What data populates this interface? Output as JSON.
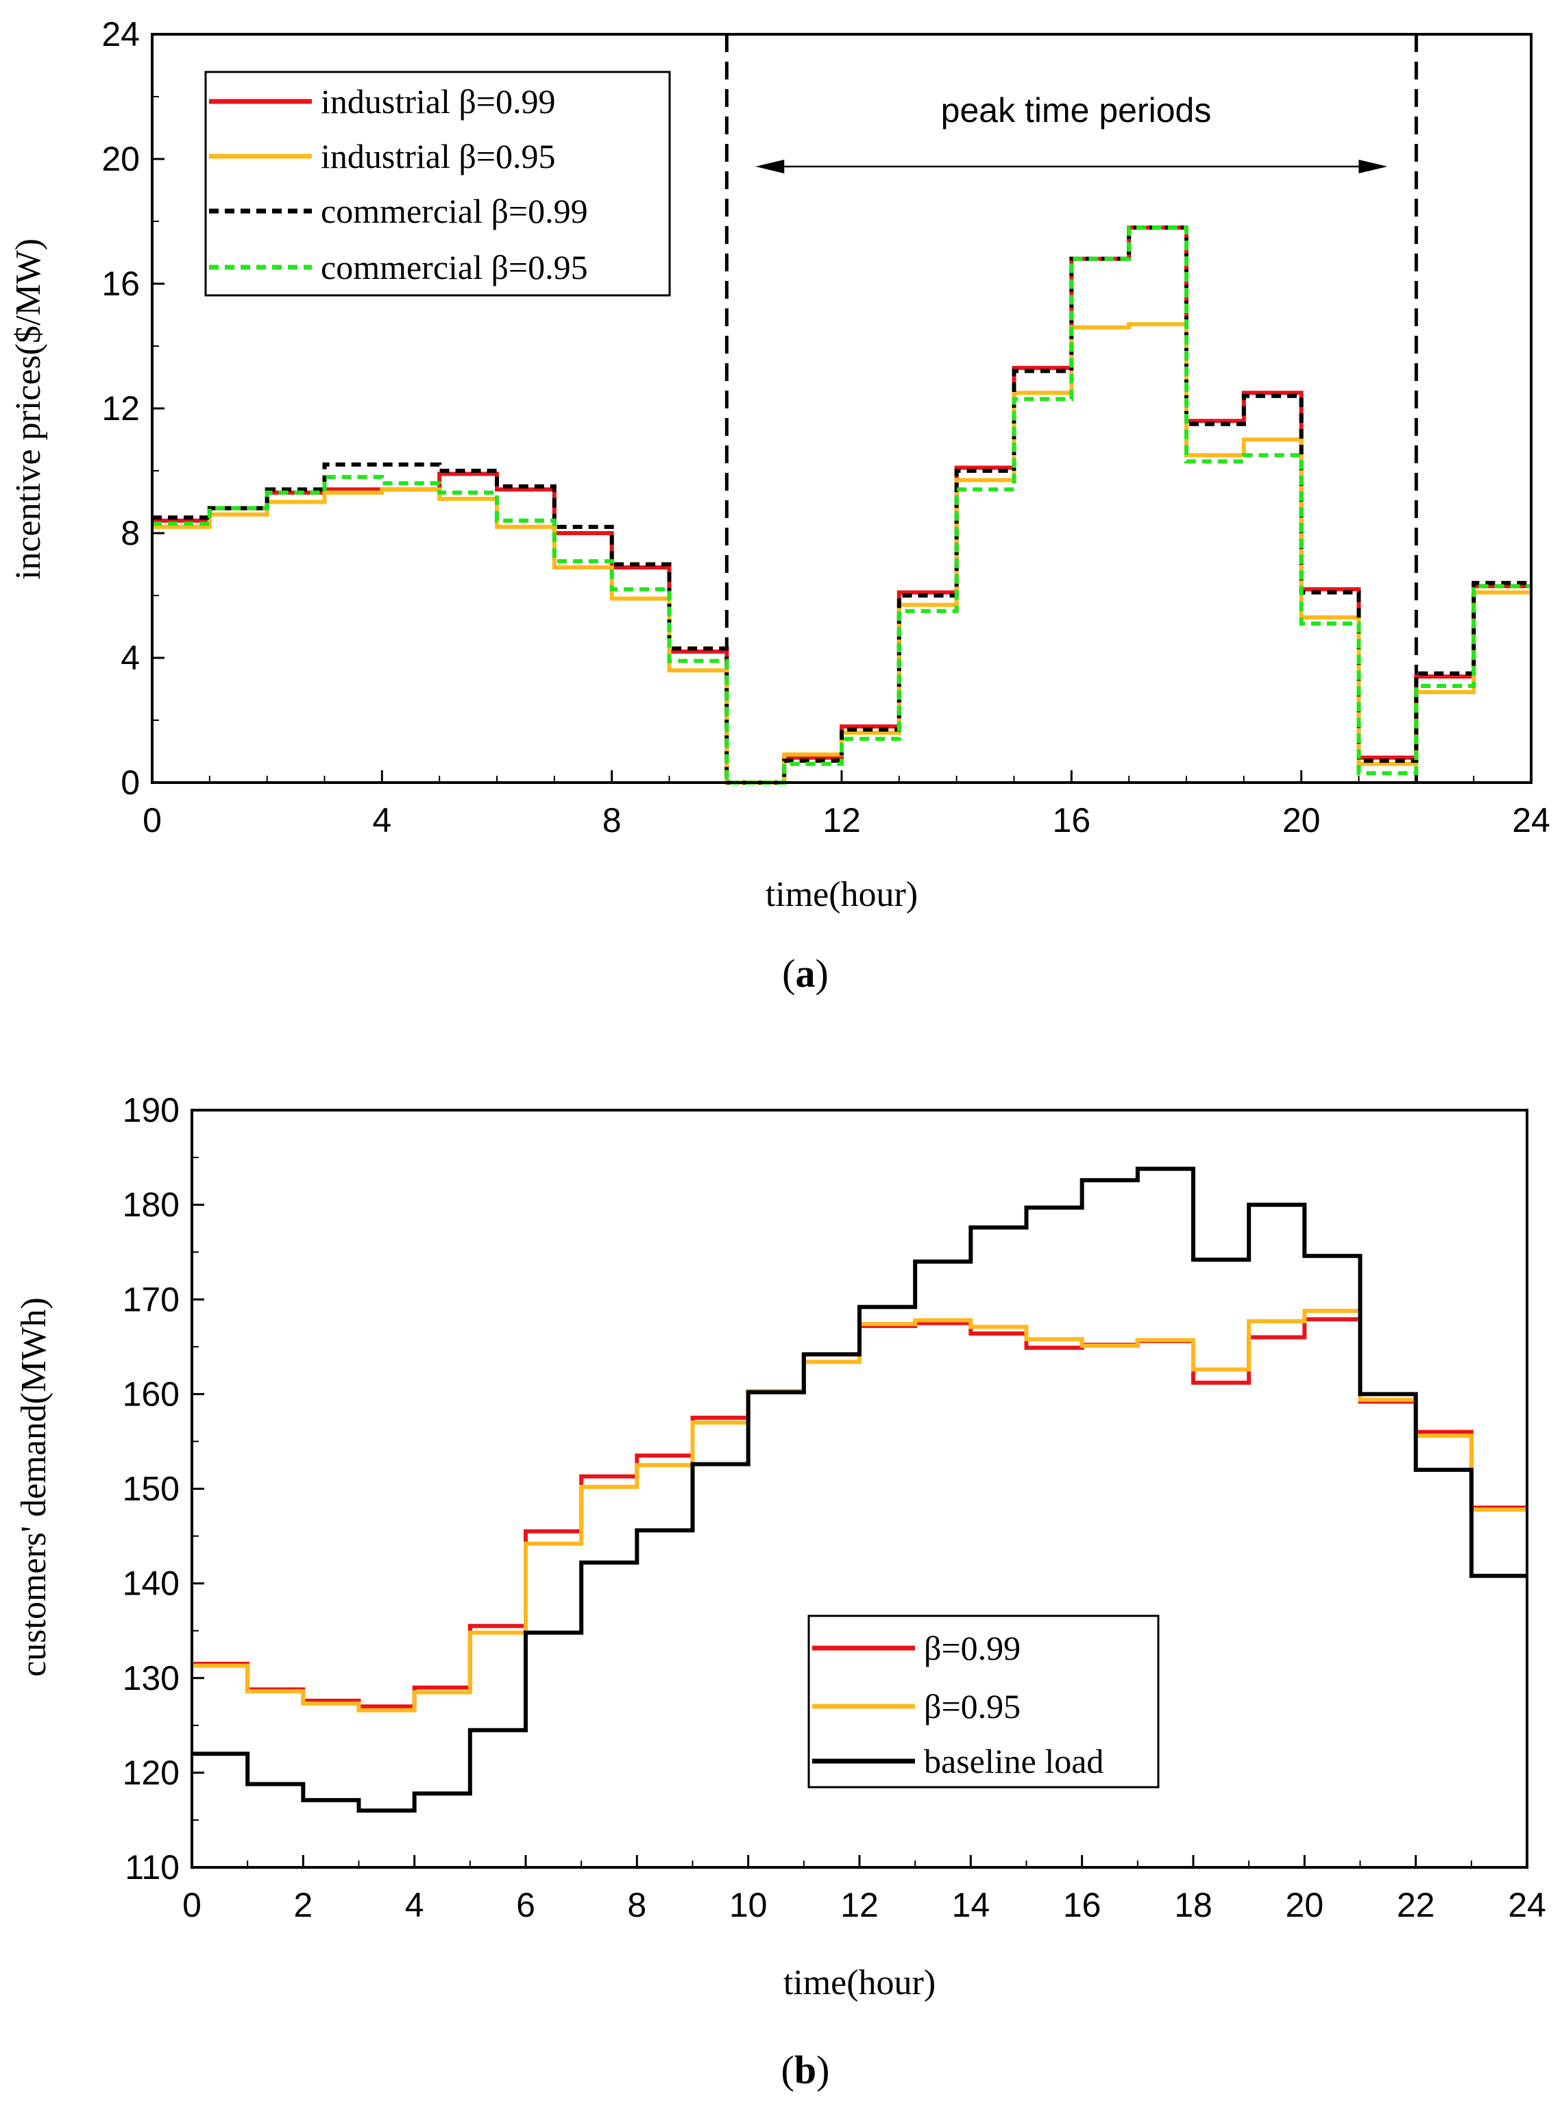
{
  "colors": {
    "red": "#e8141b",
    "orange": "#ffb81c",
    "black": "#000000",
    "green": "#22e61a"
  },
  "chart_data": [
    {
      "id": "a",
      "type": "line",
      "step": true,
      "caption_letter": "a",
      "xlabel": "time(hour)",
      "ylabel": "incentive prices($/MW)",
      "xlim": [
        0,
        24
      ],
      "ylim": [
        0,
        24
      ],
      "xticks": [
        "0",
        "4",
        "8",
        "12",
        "16",
        "20",
        "24"
      ],
      "yticks": [
        "0",
        "4",
        "8",
        "12",
        "16",
        "20",
        "24"
      ],
      "legend_position": "top-left",
      "annotation": {
        "text": "peak time periods",
        "arrow_from_hour": 10.5,
        "arrow_to_hour": 21.5,
        "vlines_at_hour": [
          10,
          22
        ]
      },
      "series": [
        {
          "name": "industrial β=0.99",
          "style": "solid",
          "color_key": "red",
          "values": [
            8.4,
            8.8,
            9.3,
            9.4,
            9.4,
            9.9,
            9.4,
            8.0,
            6.9,
            4.2,
            0.0,
            0.8,
            1.8,
            6.1,
            10.1,
            13.3,
            16.8,
            17.8,
            11.6,
            12.5,
            6.2,
            0.8,
            3.4,
            6.3
          ]
        },
        {
          "name": "industrial β=0.95",
          "style": "solid",
          "color_key": "orange",
          "values": [
            8.2,
            8.6,
            9.0,
            9.3,
            9.4,
            9.1,
            8.2,
            6.9,
            5.9,
            3.6,
            0.0,
            0.9,
            1.6,
            5.7,
            9.7,
            12.5,
            14.6,
            14.7,
            10.5,
            11.0,
            5.3,
            0.6,
            2.9,
            6.1
          ]
        },
        {
          "name": "commercial β=0.99",
          "style": "dashed",
          "color_key": "black",
          "values": [
            8.5,
            8.8,
            9.4,
            10.2,
            10.2,
            10.0,
            9.5,
            8.2,
            7.0,
            4.3,
            0.0,
            0.7,
            1.7,
            6.0,
            10.0,
            13.2,
            16.8,
            17.8,
            11.5,
            12.4,
            6.1,
            0.7,
            3.5,
            6.4
          ]
        },
        {
          "name": "commercial β=0.95",
          "style": "dashed",
          "color_key": "green",
          "values": [
            8.3,
            8.8,
            9.3,
            9.8,
            9.6,
            9.3,
            8.4,
            7.1,
            6.2,
            3.9,
            0.0,
            0.6,
            1.4,
            5.5,
            9.4,
            12.3,
            16.8,
            17.8,
            10.3,
            10.5,
            5.1,
            0.3,
            3.1,
            6.3
          ]
        }
      ]
    },
    {
      "id": "b",
      "type": "line",
      "step": true,
      "caption_letter": "b",
      "xlabel": "time(hour)",
      "ylabel": "customers' demand(MWh)",
      "xlim": [
        0,
        24
      ],
      "ylim": [
        110,
        190
      ],
      "xticks": [
        "0",
        "2",
        "4",
        "6",
        "8",
        "10",
        "12",
        "14",
        "16",
        "18",
        "20",
        "22",
        "24"
      ],
      "yticks": [
        "110",
        "120",
        "130",
        "140",
        "150",
        "160",
        "170",
        "180",
        "190"
      ],
      "legend_position": "lower-center",
      "series": [
        {
          "name": "β=0.99",
          "style": "solid",
          "color_key": "red",
          "values": [
            131.5,
            128.8,
            127.6,
            127.0,
            129.0,
            135.5,
            145.5,
            151.3,
            153.5,
            157.5,
            160.3,
            164.2,
            167.2,
            167.5,
            166.4,
            164.9,
            165.2,
            165.6,
            161.2,
            166.0,
            167.9,
            159.2,
            156.0,
            148.0
          ]
        },
        {
          "name": "β=0.95",
          "style": "solid",
          "color_key": "orange",
          "values": [
            131.3,
            128.6,
            127.3,
            126.6,
            128.5,
            134.8,
            144.2,
            150.2,
            152.5,
            157.0,
            160.3,
            163.4,
            167.4,
            167.8,
            167.1,
            165.8,
            165.1,
            165.7,
            162.6,
            167.7,
            168.8,
            159.4,
            155.6,
            147.8
          ]
        },
        {
          "name": "baseline load",
          "style": "solid",
          "color_key": "black",
          "values": [
            122.0,
            118.8,
            117.1,
            116.0,
            117.8,
            124.5,
            134.8,
            142.2,
            145.6,
            152.6,
            160.2,
            164.2,
            169.2,
            174.0,
            177.6,
            179.7,
            182.6,
            183.8,
            174.2,
            180.0,
            174.6,
            160.0,
            152.0,
            140.8
          ]
        }
      ]
    }
  ]
}
